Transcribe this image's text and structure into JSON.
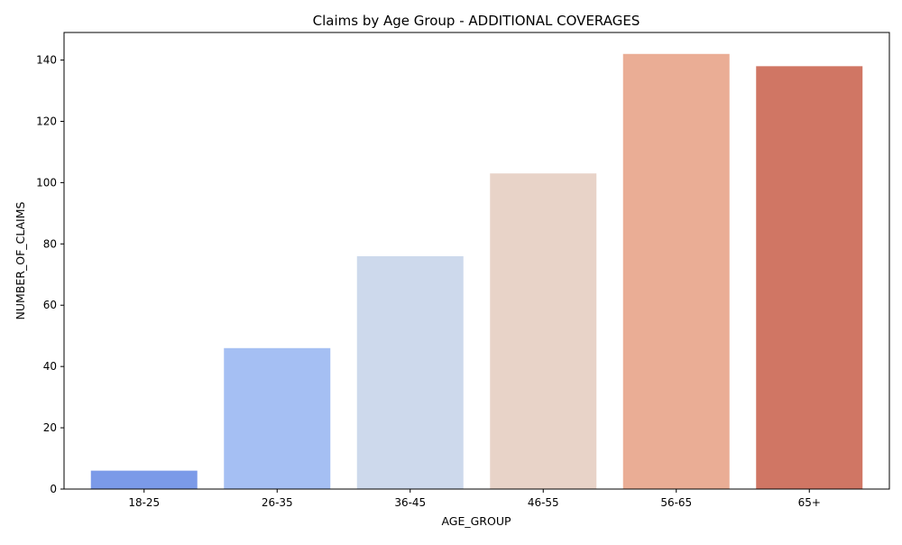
{
  "chart_data": {
    "type": "bar",
    "title": "Claims by Age Group - ADDITIONAL COVERAGES",
    "xlabel": "AGE_GROUP",
    "ylabel": "NUMBER_OF_CLAIMS",
    "categories": [
      "18-25",
      "26-35",
      "36-45",
      "46-55",
      "56-65",
      "65+"
    ],
    "values": [
      6,
      46,
      76,
      103,
      142,
      138
    ],
    "colors": [
      "#7b9ae8",
      "#a5bff3",
      "#cdd9ec",
      "#e8d3c8",
      "#eaad95",
      "#d07664"
    ],
    "ylim": [
      0,
      149
    ],
    "yticks": [
      0,
      20,
      40,
      60,
      80,
      100,
      120,
      140
    ],
    "grid": false,
    "legend": "none"
  }
}
